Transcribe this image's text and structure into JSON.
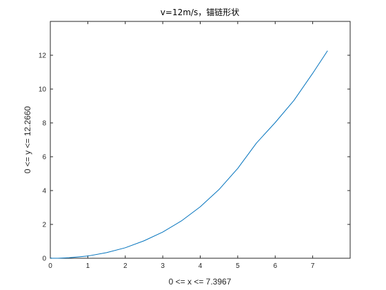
{
  "chart_data": {
    "type": "line",
    "title": "v=12m/s，锚链形状",
    "xlabel": "0 <= x <= 7.3967",
    "ylabel": "0 <= y <= 12.2660",
    "xlim": [
      0,
      8
    ],
    "ylim": [
      0,
      14
    ],
    "x_ticks": [
      0,
      1,
      2,
      3,
      4,
      5,
      6,
      7
    ],
    "y_ticks": [
      0,
      2,
      4,
      6,
      8,
      10,
      12
    ],
    "grid": false,
    "series": [
      {
        "color": "#0072bd",
        "x": [
          0,
          0.05,
          0.1,
          0.2,
          0.5,
          1.0,
          1.5,
          2.0,
          2.5,
          3.0,
          3.5,
          4.0,
          4.5,
          5.0,
          5.5,
          6.0,
          6.5,
          7.0,
          7.3967
        ],
        "y": [
          0.02,
          0.0,
          0.0,
          0.0,
          0.03,
          0.13,
          0.33,
          0.62,
          1.03,
          1.55,
          2.21,
          3.04,
          4.06,
          5.31,
          6.81,
          8.02,
          9.33,
          10.93,
          12.266
        ]
      }
    ]
  }
}
